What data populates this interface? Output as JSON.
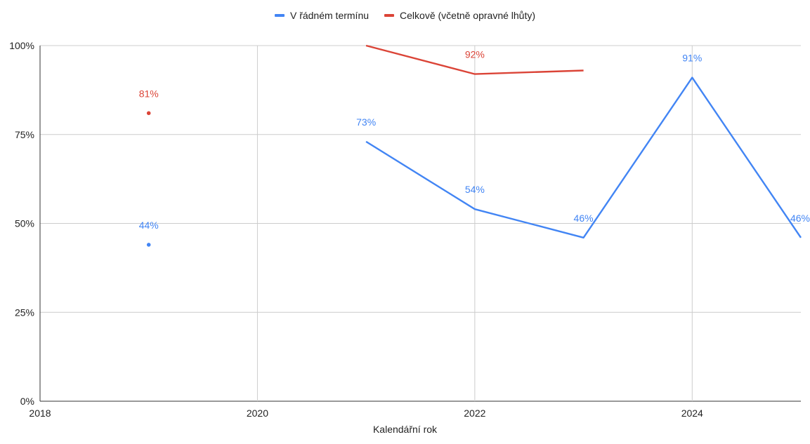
{
  "chart_data": {
    "type": "line",
    "title": "",
    "xlabel": "Kalendářní rok",
    "ylabel": "",
    "xlim": [
      2018,
      2025
    ],
    "ylim": [
      0,
      100
    ],
    "x_ticks": [
      2018,
      2020,
      2022,
      2024
    ],
    "x_tick_labels": [
      "2018",
      "2020",
      "2022",
      "2024"
    ],
    "y_ticks": [
      0,
      25,
      50,
      75,
      100
    ],
    "y_tick_labels": [
      "0%",
      "25%",
      "50%",
      "75%",
      "100%"
    ],
    "grid": true,
    "legend_position": "top",
    "series": [
      {
        "name": "V řádném termínu",
        "color": "#4285f4",
        "points": [
          {
            "x": 2019,
            "y": 44,
            "label": "44%"
          },
          {
            "x": 2020,
            "y": null,
            "label": ""
          },
          {
            "x": 2021,
            "y": 73,
            "label": "73%"
          },
          {
            "x": 2022,
            "y": 54,
            "label": "54%"
          },
          {
            "x": 2023,
            "y": 46,
            "label": "46%"
          },
          {
            "x": 2024,
            "y": 91,
            "label": "91%"
          },
          {
            "x": 2025,
            "y": 46,
            "label": "46%"
          }
        ]
      },
      {
        "name": "Celkově (včetně opravné lhůty)",
        "color": "#db4437",
        "points": [
          {
            "x": 2019,
            "y": 81,
            "label": "81%"
          },
          {
            "x": 2020,
            "y": null,
            "label": ""
          },
          {
            "x": 2021,
            "y": 100,
            "label": ""
          },
          {
            "x": 2022,
            "y": 92,
            "label": "92%"
          },
          {
            "x": 2023,
            "y": 93,
            "label": ""
          }
        ]
      }
    ]
  }
}
